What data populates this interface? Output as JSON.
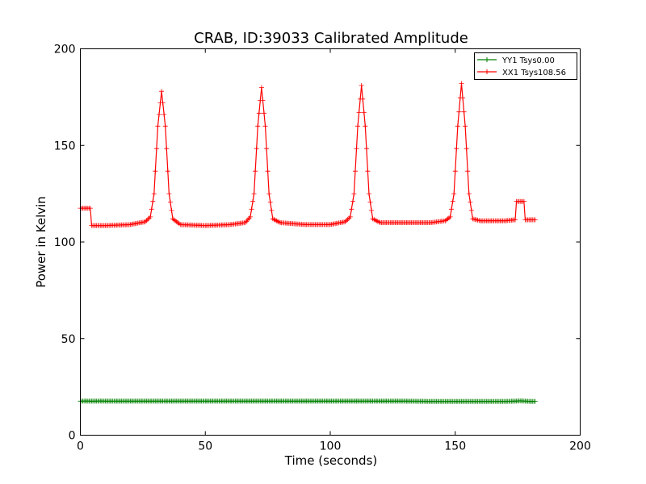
{
  "chart_data": {
    "type": "line",
    "title": "CRAB, ID:39033 Calibrated Amplitude",
    "xlabel": "Time (seconds)",
    "ylabel": "Power in Kelvin",
    "xlim": [
      0,
      200
    ],
    "ylim": [
      0,
      200
    ],
    "xticks": [
      "0",
      "50",
      "100",
      "150",
      "200"
    ],
    "yticks": [
      "0",
      "50",
      "100",
      "150",
      "200"
    ],
    "grid": false,
    "legend_position": "top-right",
    "series": [
      {
        "name": "YY1 Tsys0.00",
        "color": "#008000",
        "marker": "+",
        "points": [
          [
            0,
            17.6
          ],
          [
            2,
            17.7
          ],
          [
            4,
            17.6
          ],
          [
            6,
            17.6
          ],
          [
            8,
            17.7
          ],
          [
            10,
            17.6
          ],
          [
            20,
            17.6
          ],
          [
            30,
            17.6
          ],
          [
            40,
            17.6
          ],
          [
            50,
            17.6
          ],
          [
            60,
            17.6
          ],
          [
            70,
            17.6
          ],
          [
            80,
            17.6
          ],
          [
            90,
            17.6
          ],
          [
            100,
            17.6
          ],
          [
            110,
            17.6
          ],
          [
            120,
            17.6
          ],
          [
            130,
            17.6
          ],
          [
            140,
            17.5
          ],
          [
            150,
            17.5
          ],
          [
            160,
            17.5
          ],
          [
            170,
            17.5
          ],
          [
            174,
            17.6
          ],
          [
            176,
            17.8
          ],
          [
            178,
            17.6
          ],
          [
            180,
            17.5
          ],
          [
            182,
            17.5
          ]
        ]
      },
      {
        "name": "XX1 Tsys108.56",
        "color": "#ff0000",
        "marker": "+",
        "points": [
          [
            0,
            117.5
          ],
          [
            4,
            117.5
          ],
          [
            4.5,
            108.5
          ],
          [
            10,
            108.5
          ],
          [
            20,
            109
          ],
          [
            26,
            110.5
          ],
          [
            28,
            113
          ],
          [
            29.5,
            125
          ],
          [
            31,
            160
          ],
          [
            32.5,
            178
          ],
          [
            34,
            160
          ],
          [
            35.5,
            125
          ],
          [
            37,
            112
          ],
          [
            40,
            109
          ],
          [
            50,
            108.5
          ],
          [
            60,
            109
          ],
          [
            66,
            110
          ],
          [
            68,
            113
          ],
          [
            69.5,
            125
          ],
          [
            71,
            160
          ],
          [
            72.5,
            180
          ],
          [
            74,
            160
          ],
          [
            75.5,
            125
          ],
          [
            77,
            112
          ],
          [
            80,
            110
          ],
          [
            90,
            109
          ],
          [
            100,
            109
          ],
          [
            106,
            110.5
          ],
          [
            108,
            113
          ],
          [
            109.5,
            125
          ],
          [
            111,
            160
          ],
          [
            112.5,
            181
          ],
          [
            114,
            160
          ],
          [
            115.5,
            125
          ],
          [
            117,
            112
          ],
          [
            120,
            110
          ],
          [
            130,
            110
          ],
          [
            140,
            110
          ],
          [
            146,
            111
          ],
          [
            148,
            113
          ],
          [
            149.5,
            125
          ],
          [
            151,
            160
          ],
          [
            152.5,
            182
          ],
          [
            154,
            160
          ],
          [
            155.5,
            125
          ],
          [
            157,
            112
          ],
          [
            160,
            111
          ],
          [
            170,
            111
          ],
          [
            174,
            111.5
          ],
          [
            174.5,
            121
          ],
          [
            177.5,
            121
          ],
          [
            178,
            111.5
          ],
          [
            182,
            111.5
          ]
        ]
      }
    ]
  }
}
